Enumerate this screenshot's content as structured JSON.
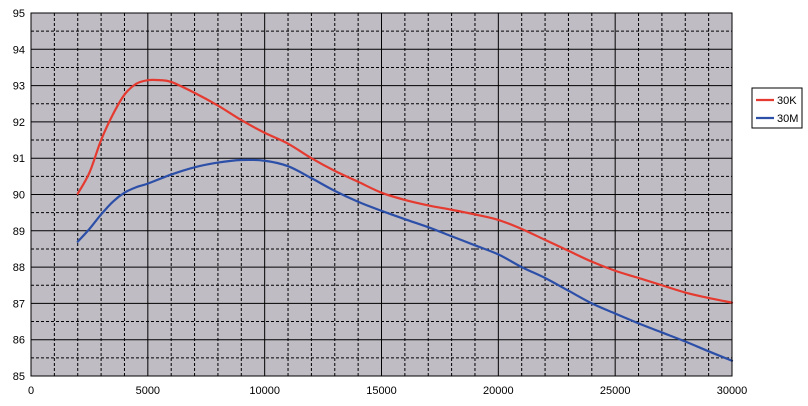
{
  "chart_data": {
    "type": "line",
    "title": "",
    "xlabel": "",
    "ylabel": "",
    "xlim": [
      0,
      30000
    ],
    "ylim": [
      85,
      95
    ],
    "x_ticks": [
      0,
      5000,
      10000,
      15000,
      20000,
      25000,
      30000
    ],
    "y_ticks": [
      85,
      86,
      87,
      88,
      89,
      90,
      91,
      92,
      93,
      94,
      95
    ],
    "grid": true,
    "legend_position": "right",
    "colors": {
      "plot_background": "#c0bcc4",
      "grid_major": "#000000",
      "grid_minor": "#000000"
    },
    "series": [
      {
        "name": "30K",
        "color": "#e53a30",
        "x": [
          2000,
          2500,
          3000,
          3500,
          4000,
          4500,
          5000,
          5500,
          6000,
          7000,
          8000,
          9000,
          10000,
          11000,
          12000,
          13000,
          14000,
          15000,
          16000,
          17000,
          18000,
          19000,
          20000,
          21000,
          22000,
          23000,
          24000,
          25000,
          26000,
          27000,
          28000,
          29000,
          30000
        ],
        "values": [
          90.02,
          90.6,
          91.5,
          92.2,
          92.75,
          93.05,
          93.15,
          93.15,
          93.1,
          92.8,
          92.45,
          92.05,
          91.7,
          91.4,
          91.0,
          90.65,
          90.35,
          90.05,
          89.85,
          89.7,
          89.58,
          89.45,
          89.3,
          89.05,
          88.75,
          88.45,
          88.15,
          87.9,
          87.7,
          87.5,
          87.3,
          87.15,
          87.02
        ]
      },
      {
        "name": "30M",
        "color": "#2c4fa8",
        "x": [
          2000,
          2500,
          3000,
          3500,
          4000,
          4500,
          5000,
          6000,
          7000,
          8000,
          9000,
          10000,
          11000,
          12000,
          13000,
          14000,
          15000,
          16000,
          17000,
          18000,
          19000,
          20000,
          21000,
          22000,
          23000,
          24000,
          25000,
          26000,
          27000,
          28000,
          29000,
          30000
        ],
        "values": [
          88.7,
          89.05,
          89.45,
          89.8,
          90.05,
          90.2,
          90.3,
          90.55,
          90.75,
          90.88,
          90.95,
          90.93,
          90.78,
          90.45,
          90.1,
          89.8,
          89.55,
          89.32,
          89.1,
          88.85,
          88.6,
          88.35,
          88.0,
          87.7,
          87.35,
          87.0,
          86.72,
          86.45,
          86.2,
          85.95,
          85.68,
          85.42
        ]
      }
    ]
  }
}
